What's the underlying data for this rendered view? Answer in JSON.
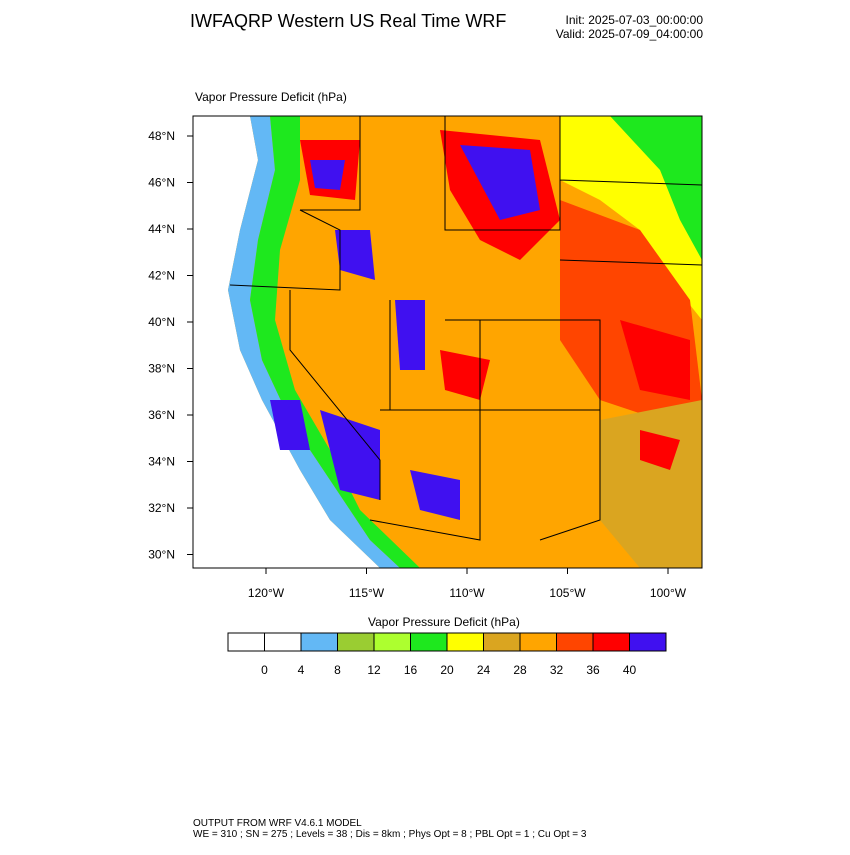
{
  "header": {
    "title": "IWFAQRP Western US Real Time WRF",
    "init": "Init: 2025-07-03_00:00:00",
    "valid": "Valid: 2025-07-09_04:00:00"
  },
  "map": {
    "field_label": "Vapor Pressure Deficit   (hPa)",
    "lat_labels": [
      "48°N",
      "46°N",
      "44°N",
      "42°N",
      "40°N",
      "38°N",
      "36°N",
      "34°N",
      "32°N",
      "30°N"
    ],
    "lon_labels": [
      "120°W",
      "115°W",
      "110°W",
      "105°W",
      "100°W"
    ]
  },
  "colorbar": {
    "title": "Vapor Pressure Deficit  (hPa)",
    "colors": [
      "#ffffff",
      "#ffffff",
      "#63b8f5",
      "#9acd32",
      "#adff2f",
      "#1ee81e",
      "#ffff00",
      "#daa520",
      "#ffa500",
      "#ff4500",
      "#ff0000",
      "#4010f0"
    ],
    "labels": [
      "0",
      "4",
      "8",
      "12",
      "16",
      "20",
      "24",
      "28",
      "32",
      "36",
      "40"
    ]
  },
  "footer": {
    "line1": "OUTPUT FROM WRF V4.6.1 MODEL",
    "line2": "WE = 310 ; SN = 275 ; Levels = 38 ; Dis = 8km ; Phys Opt = 8 ; PBL Opt = 1 ; Cu Opt = 3"
  }
}
